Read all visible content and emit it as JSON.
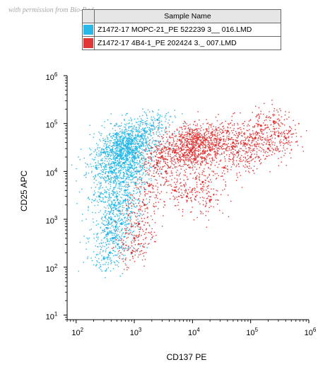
{
  "watermark": "with permission from Bio-Rad",
  "legend": {
    "header": "Sample Name",
    "rows": [
      {
        "label": "Z1472-17 MOPC-21_PE 522239 3__ 016.LMD",
        "color": "#2ab8e8"
      },
      {
        "label": "Z1472-17 4B4-1_PE 202424 3._ 007.LMD",
        "color": "#e03838"
      }
    ]
  },
  "chart_data": {
    "type": "scatter",
    "xlabel": "CD137 PE",
    "ylabel": "CD25 APC",
    "xscale": "log",
    "yscale": "log",
    "xlim": [
      70,
      1000000
    ],
    "ylim": [
      8,
      1000000
    ],
    "x_ticks": [
      {
        "value": 100,
        "base": "10",
        "exp": "2"
      },
      {
        "value": 1000,
        "base": "10",
        "exp": "3"
      },
      {
        "value": 10000,
        "base": "10",
        "exp": "4"
      },
      {
        "value": 100000,
        "base": "10",
        "exp": "5"
      },
      {
        "value": 1000000,
        "base": "10",
        "exp": "6"
      }
    ],
    "y_ticks": [
      {
        "value": 10,
        "base": "10",
        "exp": "1"
      },
      {
        "value": 100,
        "base": "10",
        "exp": "2"
      },
      {
        "value": 1000,
        "base": "10",
        "exp": "3"
      },
      {
        "value": 10000,
        "base": "10",
        "exp": "4"
      },
      {
        "value": 100000,
        "base": "10",
        "exp": "5"
      },
      {
        "value": 1000000,
        "base": "10",
        "exp": "6"
      }
    ],
    "series": [
      {
        "name": "Z1472-17 MOPC-21_PE 522239 3__ 016.LMD",
        "color": "#2ab8e8",
        "points": [
          [
            650,
            30000
          ],
          [
            800,
            25000
          ],
          [
            500,
            40000
          ],
          [
            1000,
            20000
          ],
          [
            700,
            35000
          ],
          [
            450,
            15000
          ],
          [
            900,
            45000
          ],
          [
            600,
            28000
          ],
          [
            750,
            18000
          ],
          [
            550,
            22000
          ],
          [
            1100,
            30000
          ],
          [
            400,
            10000
          ],
          [
            850,
            12000
          ],
          [
            480,
            60000
          ],
          [
            1300,
            55000
          ],
          [
            350,
            8000
          ],
          [
            650,
            6000
          ],
          [
            700,
            4000
          ],
          [
            500,
            3000
          ],
          [
            450,
            2000
          ],
          [
            550,
            1500
          ],
          [
            400,
            1000
          ],
          [
            480,
            700
          ],
          [
            420,
            400
          ],
          [
            520,
            300
          ],
          [
            380,
            200
          ],
          [
            300,
            150
          ],
          [
            600,
            800
          ],
          [
            350,
            500
          ],
          [
            700,
            2500
          ],
          [
            900,
            8000
          ],
          [
            250,
            3000
          ],
          [
            1500,
            70000
          ],
          [
            2000,
            90000
          ],
          [
            300,
            25000
          ],
          [
            1200,
            10000
          ],
          [
            800,
            60000
          ],
          [
            220,
            12000
          ],
          [
            1600,
            40000
          ],
          [
            2500,
            120000
          ],
          [
            650,
            15000
          ],
          [
            750,
            32000
          ],
          [
            580,
            27000
          ],
          [
            880,
            37000
          ],
          [
            520,
            21000
          ]
        ]
      },
      {
        "name": "Z1472-17 4B4-1_PE 202424 3._ 007.LMD",
        "color": "#e03838",
        "points": [
          [
            8000,
            35000
          ],
          [
            10000,
            30000
          ],
          [
            5000,
            25000
          ],
          [
            15000,
            40000
          ],
          [
            6000,
            45000
          ],
          [
            20000,
            28000
          ],
          [
            3000,
            20000
          ],
          [
            12000,
            50000
          ],
          [
            7000,
            22000
          ],
          [
            25000,
            35000
          ],
          [
            4000,
            30000
          ],
          [
            9000,
            60000
          ],
          [
            30000,
            45000
          ],
          [
            50000,
            40000
          ],
          [
            80000,
            38000
          ],
          [
            120000,
            50000
          ],
          [
            200000,
            30000
          ],
          [
            300000,
            55000
          ],
          [
            40000,
            70000
          ],
          [
            60000,
            25000
          ],
          [
            2500,
            15000
          ],
          [
            3500,
            10000
          ],
          [
            1800,
            5000
          ],
          [
            1500,
            2000
          ],
          [
            1200,
            800
          ],
          [
            1000,
            400
          ],
          [
            900,
            200
          ],
          [
            5000,
            4000
          ],
          [
            8000,
            3000
          ],
          [
            20000,
            2500
          ],
          [
            15000,
            6000
          ],
          [
            100000,
            20000
          ],
          [
            400000,
            50000
          ],
          [
            150000,
            90000
          ],
          [
            250000,
            110000
          ],
          [
            35000,
            12000
          ],
          [
            11000,
            18000
          ],
          [
            13000,
            33000
          ],
          [
            9500,
            27000
          ],
          [
            17000,
            46000
          ]
        ]
      }
    ]
  }
}
